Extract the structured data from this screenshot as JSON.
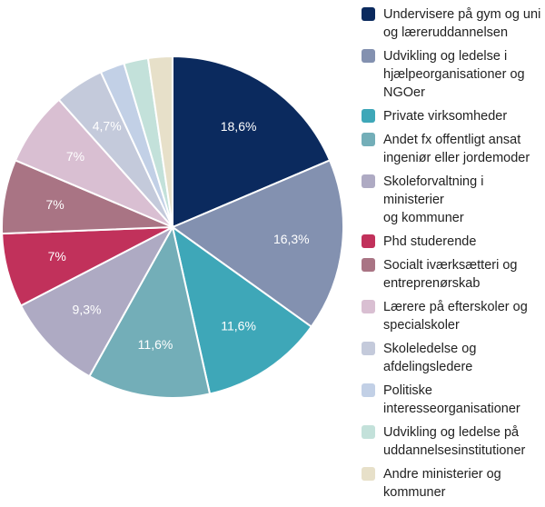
{
  "chart_data": {
    "type": "pie",
    "categories": [
      "Undervisere på gym og uni\nog læreruddannelsen",
      "Udvikling og ledelse i\nhjælpeorganisationer og\nNGOer",
      "Private virksomheder",
      "Andet fx offentligt ansat\ningeniør eller jordemoder",
      "Skoleforvaltning i ministerier\nog kommuner",
      "Phd studerende",
      "Socialt iværksætteri og\nentreprenørskab",
      "Lærere på efterskoler og\nspecialskoler",
      "Skoleledelse og\nafdelingsledere",
      "Politiske\ninteresseorganisationer",
      "Udvikling og ledelse på\nuddannelsesinstitutioner",
      "Andre ministerier og\nkommuner"
    ],
    "values": [
      18.6,
      16.3,
      11.6,
      11.6,
      9.3,
      7,
      7,
      7,
      4.7,
      2.3,
      2.3,
      2.3
    ],
    "labels": [
      "18,6%",
      "16,3%",
      "11,6%",
      "11,6%",
      "9,3%",
      "7%",
      "7%",
      "7%",
      "4,7%",
      "",
      "",
      ""
    ],
    "colors": [
      "#0b2a5e",
      "#8391b0",
      "#3ea7b8",
      "#73aeb8",
      "#aeaac3",
      "#c1315b",
      "#a97484",
      "#d9bfd2",
      "#c4cadb",
      "#c2d0e6",
      "#c3e1da",
      "#e7e0c9"
    ],
    "legend_position": "right"
  }
}
